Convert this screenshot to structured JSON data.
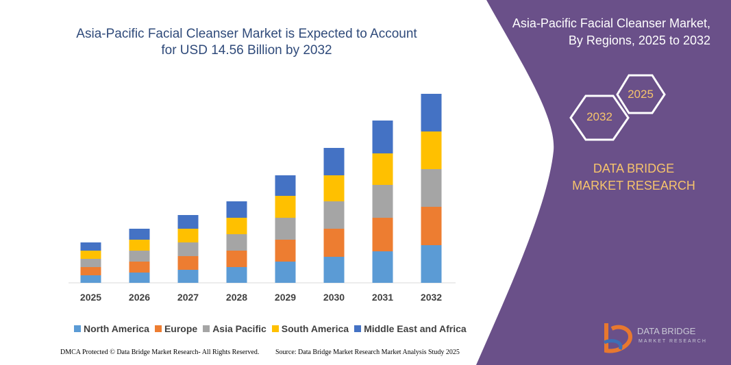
{
  "chart_data": {
    "type": "stacked_bar",
    "title": "Asia-Pacific Facial Cleanser Market is Expected to Account for USD 14.56 Billion by 2032",
    "categories": [
      "2025",
      "2026",
      "2027",
      "2028",
      "2029",
      "2030",
      "2031",
      "2032"
    ],
    "series": [
      {
        "name": "North America",
        "color": "#5b9bd5",
        "values": [
          11,
          15,
          19,
          23,
          31,
          38,
          46,
          55
        ]
      },
      {
        "name": "Europe",
        "color": "#ed7d31",
        "values": [
          12,
          16,
          20,
          24,
          32,
          41,
          49,
          56
        ]
      },
      {
        "name": "Asia Pacific",
        "color": "#a5a5a5",
        "values": [
          12,
          16,
          20,
          24,
          32,
          40,
          48,
          55
        ]
      },
      {
        "name": "South America",
        "color": "#ffc000",
        "values": [
          12,
          16,
          20,
          24,
          32,
          38,
          46,
          55
        ]
      },
      {
        "name": "Middle East and Africa",
        "color": "#4472c4",
        "values": [
          12,
          16,
          20,
          24,
          30,
          40,
          48,
          55
        ]
      }
    ],
    "ylim": [
      0,
      280
    ]
  },
  "panel": {
    "title": "Asia-Pacific Facial Cleanser Market, By Regions, 2025 to 2032",
    "badges": [
      "2032",
      "2025"
    ],
    "brand": "DATA BRIDGE MARKET RESEARCH"
  },
  "logo": {
    "name": "DATA BRIDGE",
    "tagline": "MARKET RESEARCH"
  },
  "footer": {
    "left": "DMCA Protected © Data Bridge Market Research- All Rights Reserved.",
    "right": "Source: Data Bridge Market Research Market Analysis Study 2025"
  }
}
